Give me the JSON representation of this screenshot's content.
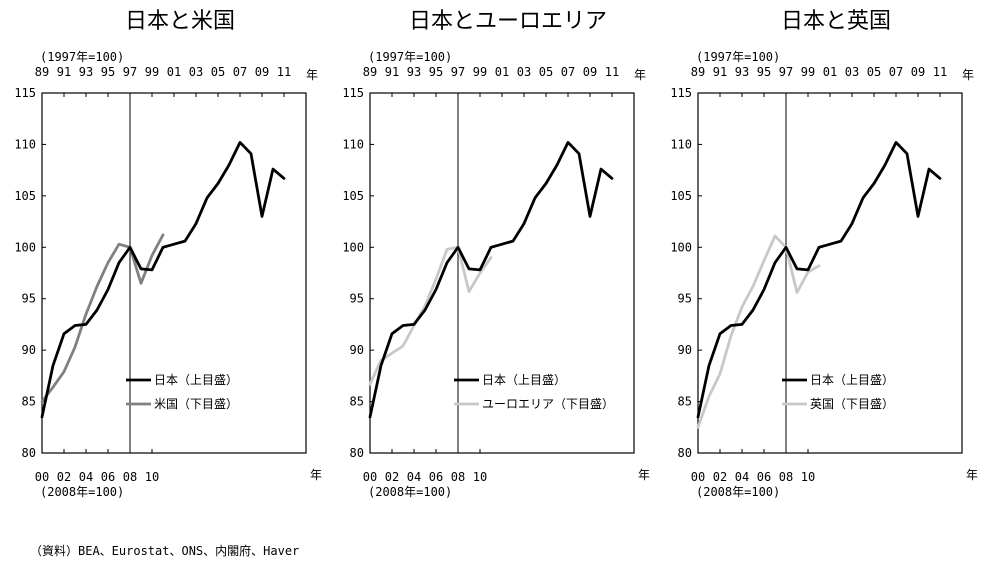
{
  "source_note": "（資料）BEA、Eurostat、ONS、内閣府、Haver",
  "chart_data": [
    {
      "type": "line",
      "title": "日本と米国",
      "top_axis": {
        "base_label": "(1997年=100)",
        "ticks": [
          "89",
          "91",
          "93",
          "95",
          "97",
          "99",
          "01",
          "03",
          "05",
          "07",
          "09",
          "11"
        ],
        "unit": "年",
        "range": [
          1989,
          2013
        ]
      },
      "bottom_axis": {
        "base_label": "(2008年=100)",
        "ticks": [
          "00",
          "02",
          "04",
          "06",
          "08",
          "10"
        ],
        "unit": "年",
        "range": [
          2000,
          2024
        ]
      },
      "y_ticks": [
        "115",
        "110",
        "105",
        "100",
        "95",
        "90",
        "85",
        "80"
      ],
      "ylim": [
        80,
        115
      ],
      "marker_year_top": 1997,
      "legend_placement": "lower-right",
      "series": [
        {
          "name": "日本（上目盛）",
          "axis": "top",
          "color": "#000000",
          "x": [
            1989,
            1990,
            1991,
            1992,
            1993,
            1994,
            1995,
            1996,
            1997,
            1998,
            1999,
            2000,
            2001,
            2002,
            2003,
            2004,
            2005,
            2006,
            2007,
            2008,
            2009,
            2010,
            2011
          ],
          "y": [
            83.5,
            88.5,
            91.6,
            92.4,
            92.5,
            93.9,
            95.9,
            98.5,
            100.0,
            97.9,
            97.8,
            100.0,
            100.3,
            100.6,
            102.3,
            104.8,
            106.2,
            108.0,
            110.2,
            109.1,
            103.0,
            107.6,
            106.7
          ]
        },
        {
          "name": "米国（下目盛）",
          "axis": "bottom",
          "color": "#808080",
          "x": [
            2000,
            2001,
            2002,
            2003,
            2004,
            2005,
            2006,
            2007,
            2008,
            2009,
            2010,
            2011
          ],
          "y": [
            85.0,
            86.4,
            87.9,
            90.3,
            93.5,
            96.2,
            98.5,
            100.3,
            100.0,
            96.5,
            99.2,
            101.2
          ]
        }
      ]
    },
    {
      "type": "line",
      "title": "日本とユーロエリア",
      "top_axis": {
        "base_label": "(1997年=100)",
        "ticks": [
          "89",
          "91",
          "93",
          "95",
          "97",
          "99",
          "01",
          "03",
          "05",
          "07",
          "09",
          "11"
        ],
        "unit": "年",
        "range": [
          1989,
          2013
        ]
      },
      "bottom_axis": {
        "base_label": "(2008年=100)",
        "ticks": [
          "00",
          "02",
          "04",
          "06",
          "08",
          "10"
        ],
        "unit": "年",
        "range": [
          2000,
          2024
        ]
      },
      "y_ticks": [
        "115",
        "110",
        "105",
        "100",
        "95",
        "90",
        "85",
        "80"
      ],
      "ylim": [
        80,
        115
      ],
      "marker_year_top": 1997,
      "legend_placement": "lower-right",
      "series": [
        {
          "name": "日本（上目盛）",
          "axis": "top",
          "color": "#000000",
          "x": [
            1989,
            1990,
            1991,
            1992,
            1993,
            1994,
            1995,
            1996,
            1997,
            1998,
            1999,
            2000,
            2001,
            2002,
            2003,
            2004,
            2005,
            2006,
            2007,
            2008,
            2009,
            2010,
            2011
          ],
          "y": [
            83.5,
            88.5,
            91.6,
            92.4,
            92.5,
            93.9,
            95.9,
            98.5,
            100.0,
            97.9,
            97.8,
            100.0,
            100.3,
            100.6,
            102.3,
            104.8,
            106.2,
            108.0,
            110.2,
            109.1,
            103.0,
            107.6,
            106.7
          ]
        },
        {
          "name": "ユーロエリア（下目盛）",
          "axis": "bottom",
          "color": "#c8c8c8",
          "x": [
            2000,
            2001,
            2002,
            2003,
            2004,
            2005,
            2006,
            2007,
            2008,
            2009,
            2010,
            2011
          ],
          "y": [
            86.7,
            89.0,
            89.7,
            90.4,
            92.4,
            94.3,
            96.9,
            99.8,
            100.0,
            95.7,
            97.5,
            99.0
          ]
        }
      ]
    },
    {
      "type": "line",
      "title": "日本と英国",
      "top_axis": {
        "base_label": "(1997年=100)",
        "ticks": [
          "89",
          "91",
          "93",
          "95",
          "97",
          "99",
          "01",
          "03",
          "05",
          "07",
          "09",
          "11"
        ],
        "unit": "年",
        "range": [
          1989,
          2013
        ]
      },
      "bottom_axis": {
        "base_label": "(2008年=100)",
        "ticks": [
          "00",
          "02",
          "04",
          "06",
          "08",
          "10"
        ],
        "unit": "年",
        "range": [
          2000,
          2024
        ]
      },
      "y_ticks": [
        "115",
        "110",
        "105",
        "100",
        "95",
        "90",
        "85",
        "80"
      ],
      "ylim": [
        80,
        115
      ],
      "marker_year_top": 1997,
      "legend_placement": "lower-right",
      "series": [
        {
          "name": "日本（上目盛）",
          "axis": "top",
          "color": "#000000",
          "x": [
            1989,
            1990,
            1991,
            1992,
            1993,
            1994,
            1995,
            1996,
            1997,
            1998,
            1999,
            2000,
            2001,
            2002,
            2003,
            2004,
            2005,
            2006,
            2007,
            2008,
            2009,
            2010,
            2011
          ],
          "y": [
            83.5,
            88.5,
            91.6,
            92.4,
            92.5,
            93.9,
            95.9,
            98.5,
            100.0,
            97.9,
            97.8,
            100.0,
            100.3,
            100.6,
            102.3,
            104.8,
            106.2,
            108.0,
            110.2,
            109.1,
            103.0,
            107.6,
            106.7
          ]
        },
        {
          "name": "英国（下目盛）",
          "axis": "bottom",
          "color": "#c8c8c8",
          "x": [
            2000,
            2001,
            2002,
            2003,
            2004,
            2005,
            2006,
            2007,
            2008,
            2009,
            2010,
            2011
          ],
          "y": [
            82.5,
            85.5,
            87.7,
            91.4,
            94.2,
            96.2,
            98.7,
            101.1,
            100.0,
            95.6,
            97.6,
            98.2
          ]
        }
      ]
    }
  ]
}
